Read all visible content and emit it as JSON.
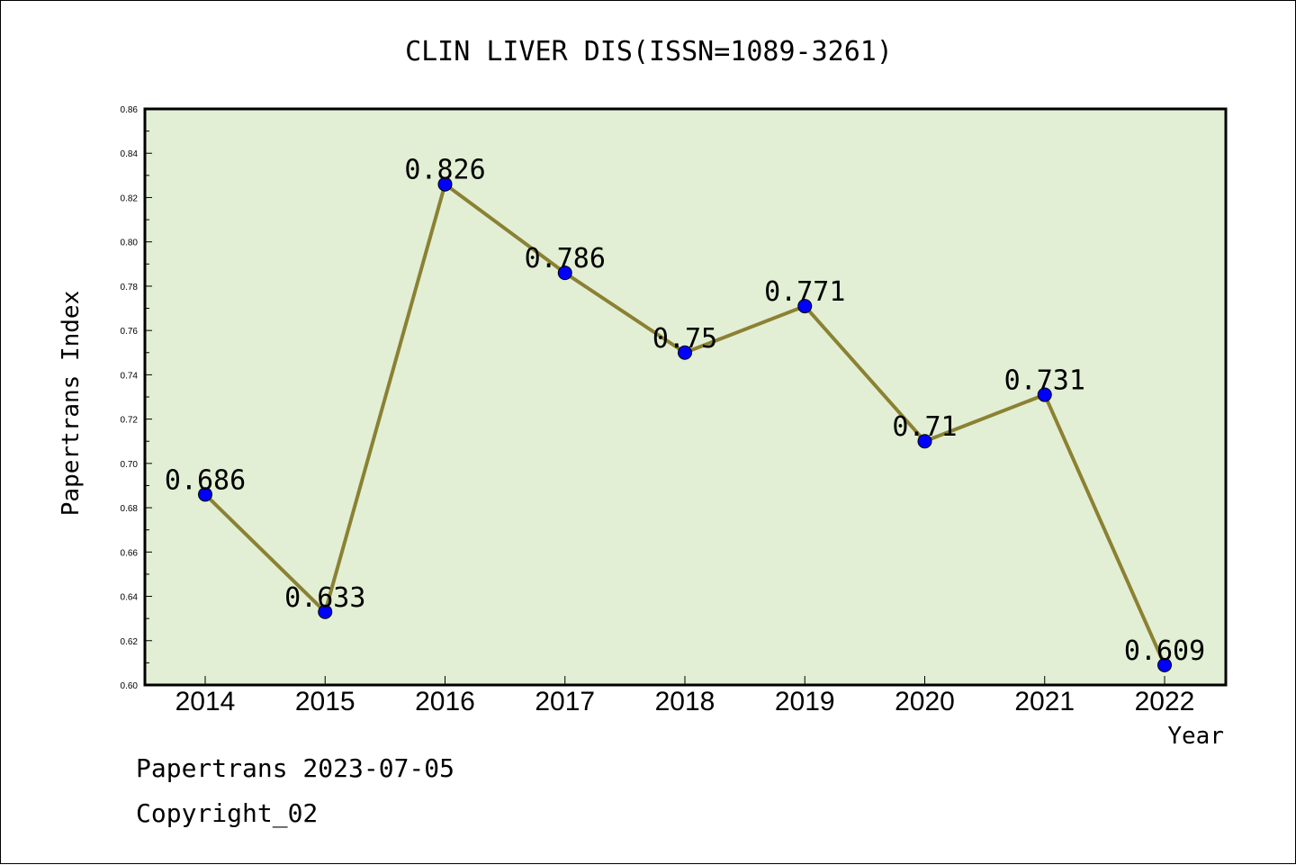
{
  "chart_data": {
    "type": "line",
    "title": "CLIN LIVER DIS(ISSN=1089-3261)",
    "xlabel": "Year",
    "ylabel": "Papertrans Index",
    "categories": [
      "2014",
      "2015",
      "2016",
      "2017",
      "2018",
      "2019",
      "2020",
      "2021",
      "2022"
    ],
    "values": [
      0.686,
      0.633,
      0.826,
      0.786,
      0.75,
      0.771,
      0.71,
      0.731,
      0.609
    ],
    "data_labels": [
      "0.686",
      "0.633",
      "0.826",
      "0.786",
      "0.75",
      "0.771",
      "0.71",
      "0.731",
      "0.609"
    ],
    "ylim": [
      0.6,
      0.86
    ],
    "yticks": [
      "0.60",
      "0.62",
      "0.64",
      "0.66",
      "0.68",
      "0.70",
      "0.72",
      "0.74",
      "0.76",
      "0.78",
      "0.80",
      "0.82",
      "0.84",
      "0.86"
    ],
    "grid": false,
    "colors": {
      "plot_background": "#e2efd4",
      "line": "#8b8133",
      "marker": "#0000ff"
    }
  },
  "footer": {
    "line1": "Papertrans 2023-07-05",
    "line2": "Copyright_02"
  }
}
